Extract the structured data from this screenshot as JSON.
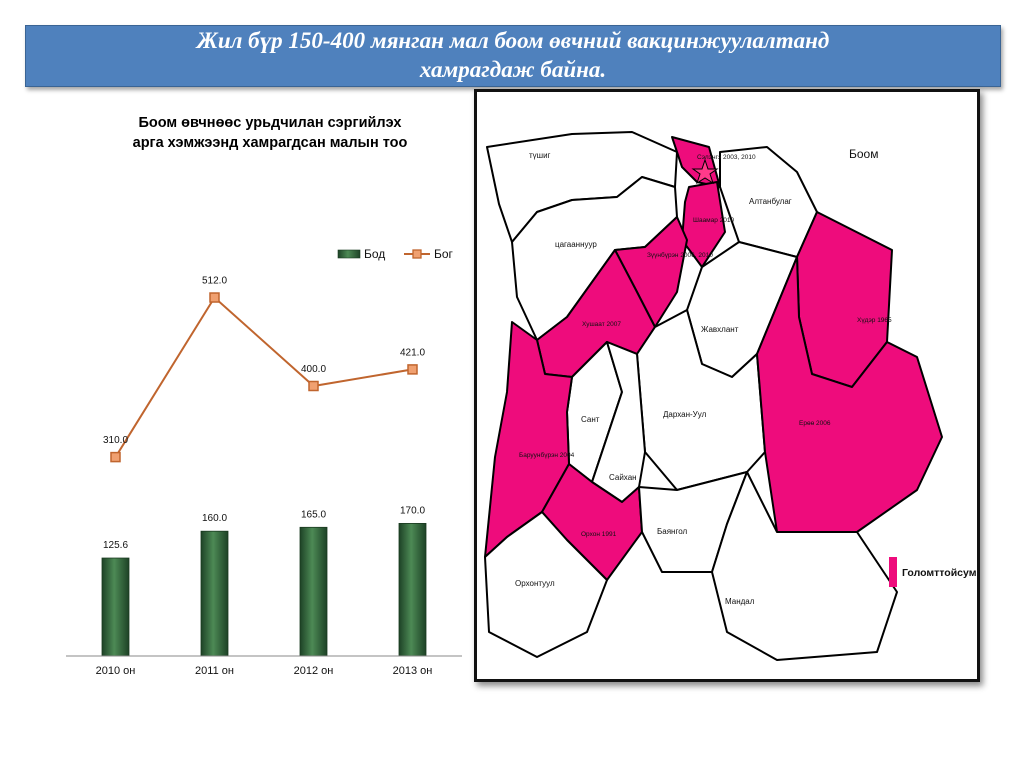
{
  "slide": {
    "title_line1": "Жил бүр 150-400 мянган мал боом өвчний вакцинжуулалтанд",
    "title_line2": "хамрагдаж байна."
  },
  "chart_title": {
    "line1": "Боом өвчнөөс урьдчилан сэргийлэх",
    "line2": "арга хэмжээнд хамрагдсан малын тоо"
  },
  "chart_data": {
    "type": "bar",
    "categories": [
      "2010 он",
      "2011 он",
      "2012 он",
      "2013 он"
    ],
    "series": [
      {
        "name": "Бод",
        "type": "bar",
        "values": [
          125.6,
          160.0,
          165.0,
          170.0
        ],
        "labels": [
          "125.6",
          "160.0",
          "165.0",
          "170.0"
        ],
        "color": "#2e5b35"
      },
      {
        "name": "Бог",
        "type": "line",
        "values": [
          310.0,
          512.0,
          400.0,
          421.0
        ],
        "labels": [
          "310.0",
          "512.0",
          "400.0",
          "421.0"
        ],
        "color": "#c0652e",
        "marker_color": "#f0a070"
      }
    ],
    "legend_position": "top-right",
    "grid": false
  },
  "map": {
    "title": "Боом",
    "legend_label": "Голомттойсум",
    "highlight_color": "#ee0c7c",
    "regions": [
      {
        "id": "tuvshin",
        "label": "түшиг",
        "highlight": false
      },
      {
        "id": "selenge",
        "label": "Сэлэнгэ 2003, 2010",
        "highlight": true
      },
      {
        "id": "altanbulag",
        "label": "Алтанбулаг",
        "highlight": false
      },
      {
        "id": "shaamar",
        "label": "Шаамар 2010",
        "highlight": true
      },
      {
        "id": "tsagaannuur",
        "label": "цагааннуур",
        "highlight": false
      },
      {
        "id": "zuunburen",
        "label": "Зүүнбүрэн 2006, 2010",
        "highlight": true
      },
      {
        "id": "hushaat",
        "label": "Хушаат 2007",
        "highlight": true
      },
      {
        "id": "javhlant",
        "label": "Жавхлант",
        "highlight": false
      },
      {
        "id": "hudar",
        "label": "Хүдэр 1965",
        "highlight": true
      },
      {
        "id": "sant",
        "label": "Сант",
        "highlight": false
      },
      {
        "id": "darkhanuul",
        "label": "Дархан-Уул",
        "highlight": false
      },
      {
        "id": "eroo",
        "label": "Ерөө 2006",
        "highlight": true
      },
      {
        "id": "baruunburen",
        "label": "Баруунбүрэн 2004",
        "highlight": true
      },
      {
        "id": "saikhan",
        "label": "Сайхан",
        "highlight": false
      },
      {
        "id": "orkhon",
        "label": "Орхон 1991",
        "highlight": true
      },
      {
        "id": "bayangol",
        "label": "Баянгол",
        "highlight": false
      },
      {
        "id": "orkhontuul",
        "label": "Орхонтуул",
        "highlight": false
      },
      {
        "id": "mandal",
        "label": "Мандал",
        "highlight": false
      }
    ]
  }
}
